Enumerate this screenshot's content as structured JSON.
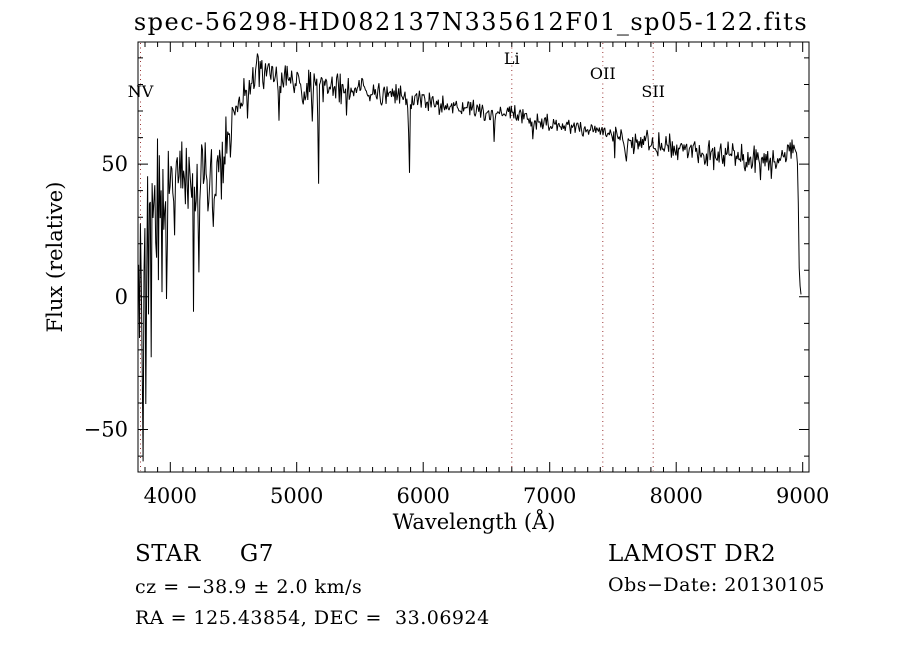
{
  "chart_data": {
    "type": "line",
    "title": "spec-56298-HD082137N335612F01_sp05-122.fits",
    "xlabel": "Wavelength (Å)",
    "ylabel": "Flux (relative)",
    "xlim": [
      3745,
      9050
    ],
    "ylim": [
      -66,
      96
    ],
    "xticks": [
      4000,
      5000,
      6000,
      7000,
      8000,
      9000
    ],
    "yticks": [
      -50,
      0,
      50
    ],
    "ytick_labels": [
      "−50",
      "0",
      "50"
    ],
    "x_minor_step": 100,
    "y_minor_step": 10,
    "grid": false,
    "line_color": "#000000",
    "marker_line_color": "#993333",
    "spectral_line_markers": [
      {
        "label": "NV",
        "wavelength": 3765,
        "label_y": 97
      },
      {
        "label": "Li",
        "wavelength": 6700,
        "label_y": 64
      },
      {
        "label": "OII",
        "wavelength": 7420,
        "label_y": 79
      },
      {
        "label": "SII",
        "wavelength": 7818,
        "label_y": 97
      }
    ],
    "spectrum_end_wavelength": 8992,
    "envelope_points": [
      [
        3745,
        10,
        75
      ],
      [
        3775,
        0,
        68
      ],
      [
        3810,
        12,
        55
      ],
      [
        3845,
        18,
        48
      ],
      [
        3880,
        22,
        42
      ],
      [
        3915,
        30,
        34
      ],
      [
        3950,
        38,
        26
      ],
      [
        3990,
        44,
        20
      ],
      [
        4040,
        47,
        16
      ],
      [
        4090,
        46,
        16
      ],
      [
        4150,
        44,
        17
      ],
      [
        4210,
        42,
        18
      ],
      [
        4270,
        40,
        19
      ],
      [
        4330,
        43,
        17
      ],
      [
        4390,
        52,
        14
      ],
      [
        4450,
        62,
        11
      ],
      [
        4520,
        70,
        10
      ],
      [
        4600,
        78,
        9
      ],
      [
        4680,
        84,
        8
      ],
      [
        4760,
        85,
        8
      ],
      [
        4840,
        82,
        8
      ],
      [
        4920,
        80,
        8
      ],
      [
        5000,
        81,
        8
      ],
      [
        5080,
        78,
        9
      ],
      [
        5160,
        80,
        8
      ],
      [
        5240,
        81,
        7
      ],
      [
        5320,
        79,
        7
      ],
      [
        5400,
        77,
        6
      ],
      [
        5500,
        78,
        5
      ],
      [
        5600,
        77,
        5
      ],
      [
        5720,
        76,
        5
      ],
      [
        5840,
        75,
        5
      ],
      [
        5960,
        74,
        4
      ],
      [
        6080,
        73,
        4
      ],
      [
        6220,
        72,
        4
      ],
      [
        6360,
        71,
        4
      ],
      [
        6500,
        70,
        4
      ],
      [
        6640,
        69,
        4
      ],
      [
        6780,
        68,
        4
      ],
      [
        6920,
        66,
        4
      ],
      [
        7060,
        65,
        4
      ],
      [
        7200,
        64,
        4
      ],
      [
        7340,
        63,
        4
      ],
      [
        7480,
        62,
        4
      ],
      [
        7620,
        60,
        5
      ],
      [
        7760,
        59,
        5
      ],
      [
        7900,
        57,
        5
      ],
      [
        8040,
        56,
        5
      ],
      [
        8180,
        55,
        6
      ],
      [
        8320,
        54,
        6
      ],
      [
        8460,
        53,
        6
      ],
      [
        8600,
        52,
        6
      ],
      [
        8740,
        52,
        6
      ],
      [
        8860,
        53,
        5
      ],
      [
        8930,
        57,
        4
      ],
      [
        8952,
        55,
        3
      ],
      [
        8962,
        48,
        2
      ],
      [
        8972,
        12,
        2
      ],
      [
        8982,
        2,
        1
      ],
      [
        8992,
        1,
        1
      ]
    ],
    "absorption_dips": [
      {
        "center": 3934,
        "depth": 28,
        "width": 5
      },
      {
        "center": 3969,
        "depth": 26,
        "width": 5
      },
      {
        "center": 4101,
        "depth": 16,
        "width": 5
      },
      {
        "center": 4226,
        "depth": 20,
        "width": 6
      },
      {
        "center": 4305,
        "depth": 16,
        "width": 8
      },
      {
        "center": 4340,
        "depth": 16,
        "width": 5
      },
      {
        "center": 4861,
        "depth": 13,
        "width": 5
      },
      {
        "center": 5172,
        "depth": 36,
        "width": 6
      },
      {
        "center": 5890,
        "depth": 29,
        "width": 6
      },
      {
        "center": 6563,
        "depth": 12,
        "width": 5
      },
      {
        "center": 6868,
        "depth": 8,
        "width": 7
      },
      {
        "center": 7605,
        "depth": 11,
        "width": 9
      },
      {
        "center": 8542,
        "depth": 8,
        "width": 5
      },
      {
        "center": 8662,
        "depth": 7,
        "width": 5
      }
    ]
  },
  "annotations": {
    "left": {
      "class_type": "STAR     G7",
      "cz": "cz = −38.9 ± 2.0 km/s",
      "radec": "RA = 125.43854, DEC =  33.06924"
    },
    "right": {
      "survey": "LAMOST DR2",
      "obs_date": "Obs−Date: 20130105"
    }
  }
}
